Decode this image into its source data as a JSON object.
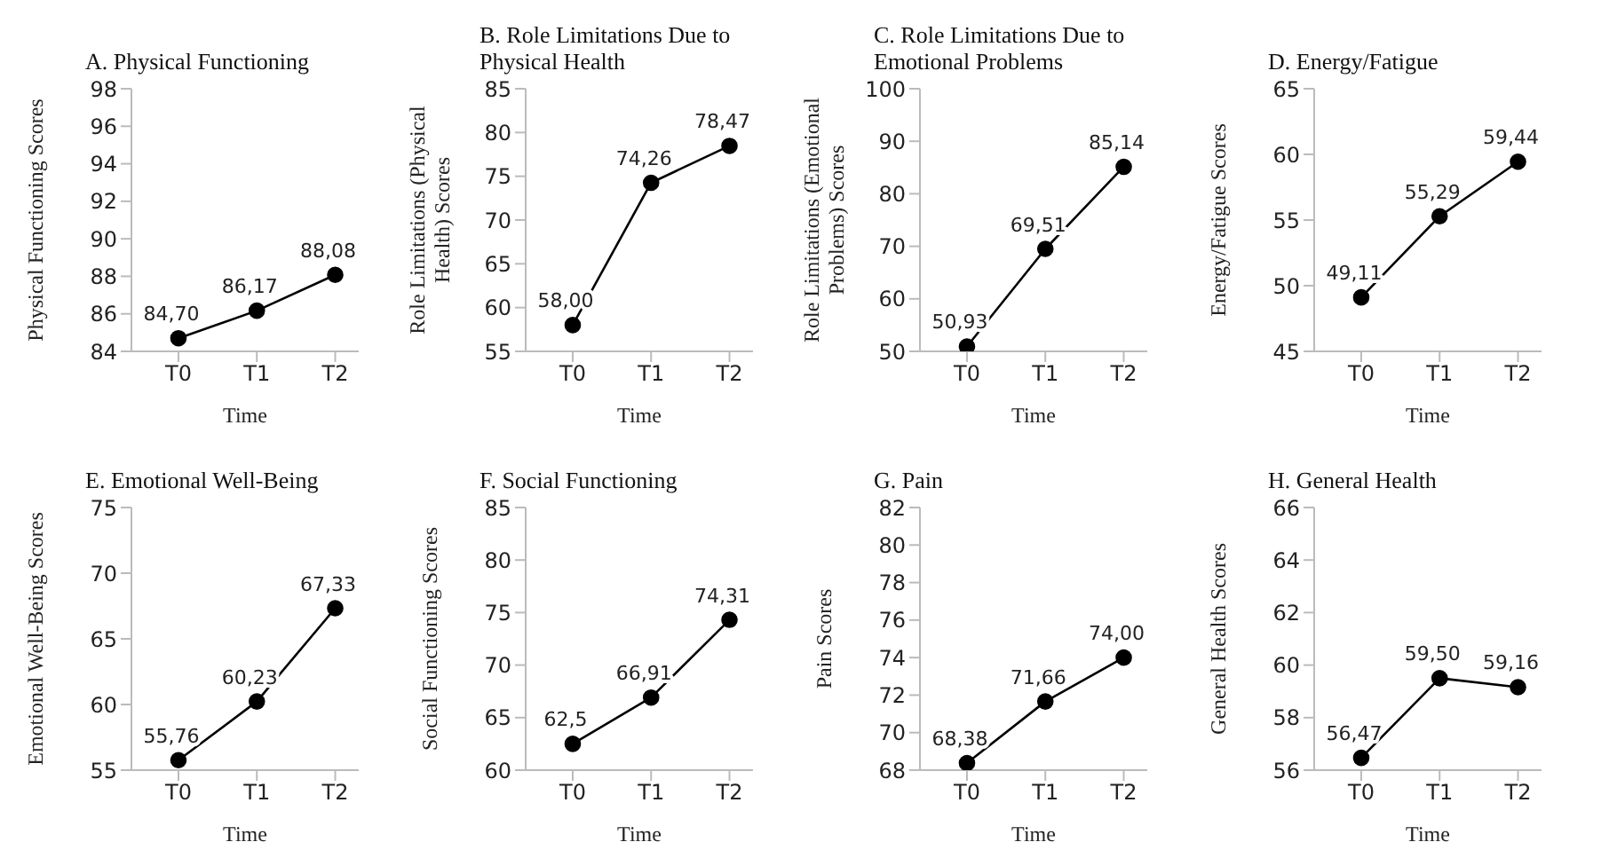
{
  "chart_data": [
    {
      "type": "line",
      "title": "A. Physical Functioning",
      "xlabel": "Time",
      "ylabel": "Physical Functioning Scores",
      "categories": [
        "T0",
        "T1",
        "T2"
      ],
      "ylim": [
        84,
        98
      ],
      "yticks": [
        84,
        86,
        88,
        90,
        92,
        94,
        96,
        98
      ],
      "marker": "circle",
      "line_style": "solid",
      "series": [
        {
          "color": "#000000",
          "values": [
            84.7,
            86.17,
            88.08
          ],
          "value_labels": [
            "84,70",
            "86,17",
            "88,08"
          ]
        }
      ]
    },
    {
      "type": "line",
      "title": "B. Role Limitations Due to Physical Health",
      "xlabel": "Time",
      "ylabel": "Role Limitations (Physical Health) Scores",
      "categories": [
        "T0",
        "T1",
        "T2"
      ],
      "ylim": [
        55,
        85
      ],
      "yticks": [
        55,
        60,
        65,
        70,
        75,
        80,
        85
      ],
      "marker": "circle",
      "line_style": "solid",
      "series": [
        {
          "color": "#000000",
          "values": [
            58.0,
            74.26,
            78.47
          ],
          "value_labels": [
            "58,00",
            "74,26",
            "78,47"
          ]
        }
      ]
    },
    {
      "type": "line",
      "title": "C. Role Limitations Due to Emotional Problems",
      "xlabel": "Time",
      "ylabel": "Role Limitations (Emotional Problems) Scores",
      "categories": [
        "T0",
        "T1",
        "T2"
      ],
      "ylim": [
        50,
        100
      ],
      "yticks": [
        50,
        60,
        70,
        80,
        90,
        100
      ],
      "marker": "circle",
      "line_style": "solid",
      "series": [
        {
          "color": "#000000",
          "values": [
            50.93,
            69.51,
            85.14
          ],
          "value_labels": [
            "50,93",
            "69,51",
            "85,14"
          ]
        }
      ]
    },
    {
      "type": "line",
      "title": "D. Energy/Fatigue",
      "xlabel": "Time",
      "ylabel": "Energy/Fatigue Scores",
      "categories": [
        "T0",
        "T1",
        "T2"
      ],
      "ylim": [
        45,
        65
      ],
      "yticks": [
        45,
        50,
        55,
        60,
        65
      ],
      "marker": "circle",
      "line_style": "solid",
      "series": [
        {
          "color": "#000000",
          "values": [
            49.11,
            55.29,
            59.44
          ],
          "value_labels": [
            "49,11",
            "55,29",
            "59,44"
          ]
        }
      ]
    },
    {
      "type": "line",
      "title": "E. Emotional Well-Being",
      "xlabel": "Time",
      "ylabel": "Emotional Well-Being Scores",
      "categories": [
        "T0",
        "T1",
        "T2"
      ],
      "ylim": [
        55,
        75
      ],
      "yticks": [
        55,
        60,
        65,
        70,
        75
      ],
      "marker": "circle",
      "line_style": "solid",
      "series": [
        {
          "color": "#000000",
          "values": [
            55.76,
            60.23,
            67.33
          ],
          "value_labels": [
            "55,76",
            "60,23",
            "67,33"
          ]
        }
      ]
    },
    {
      "type": "line",
      "title": "F. Social Functioning",
      "xlabel": "Time",
      "ylabel": "Social Functioning Scores",
      "categories": [
        "T0",
        "T1",
        "T2"
      ],
      "ylim": [
        60,
        85
      ],
      "yticks": [
        60,
        65,
        70,
        75,
        80,
        85
      ],
      "marker": "circle",
      "line_style": "solid",
      "series": [
        {
          "color": "#000000",
          "values": [
            62.5,
            66.91,
            74.31
          ],
          "value_labels": [
            "62,5",
            "66,91",
            "74,31"
          ]
        }
      ]
    },
    {
      "type": "line",
      "title": "G. Pain",
      "xlabel": "Time",
      "ylabel": "Pain Scores",
      "categories": [
        "T0",
        "T1",
        "T2"
      ],
      "ylim": [
        68,
        82
      ],
      "yticks": [
        68,
        70,
        72,
        74,
        76,
        78,
        80,
        82
      ],
      "marker": "circle",
      "line_style": "solid",
      "series": [
        {
          "color": "#000000",
          "values": [
            68.38,
            71.66,
            74.0
          ],
          "value_labels": [
            "68,38",
            "71,66",
            "74,00"
          ]
        }
      ]
    },
    {
      "type": "line",
      "title": "H. General Health",
      "xlabel": "Time",
      "ylabel": "General Health Scores",
      "categories": [
        "T0",
        "T1",
        "T2"
      ],
      "ylim": [
        56,
        66
      ],
      "yticks": [
        56,
        58,
        60,
        62,
        64,
        66
      ],
      "marker": "circle",
      "line_style": "solid",
      "series": [
        {
          "color": "#000000",
          "values": [
            56.47,
            59.5,
            59.16
          ],
          "value_labels": [
            "56,47",
            "59,50",
            "59,16"
          ]
        }
      ]
    }
  ]
}
